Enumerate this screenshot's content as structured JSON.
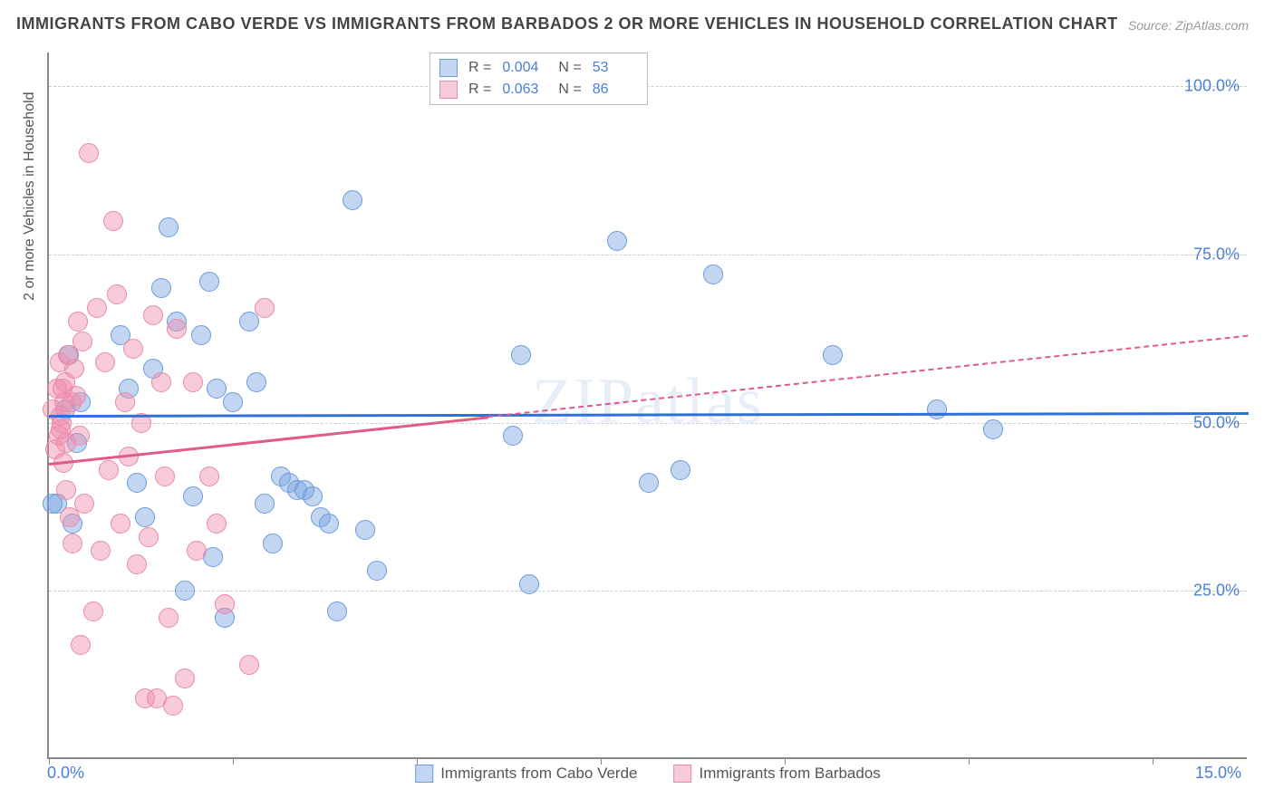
{
  "title": "IMMIGRANTS FROM CABO VERDE VS IMMIGRANTS FROM BARBADOS 2 OR MORE VEHICLES IN HOUSEHOLD CORRELATION CHART",
  "source": "Source: ZipAtlas.com",
  "watermark": "ZIPatlas",
  "ylabel": "2 or more Vehicles in Household",
  "chart": {
    "type": "scatter",
    "xlim": [
      0,
      15
    ],
    "ylim": [
      0,
      105
    ],
    "yticks": [
      {
        "v": 25,
        "label": "25.0%"
      },
      {
        "v": 50,
        "label": "50.0%"
      },
      {
        "v": 75,
        "label": "75.0%"
      },
      {
        "v": 100,
        "label": "100.0%"
      }
    ],
    "xtick_positions": [
      0,
      2.3,
      4.6,
      6.9,
      9.2,
      11.5,
      13.8
    ],
    "xtick_left": "0.0%",
    "xtick_right": "15.0%",
    "background": "#ffffff",
    "grid_color": "#cccccc",
    "axis_color": "#888888",
    "series": [
      {
        "name": "Immigrants from Cabo Verde",
        "fill": "rgba(120,165,225,0.45)",
        "stroke": "#6a9be0",
        "marker_r": 11,
        "R": "0.004",
        "N": "53",
        "trend": {
          "y0": 51.2,
          "y1": 51.6,
          "color": "#2f6fd8",
          "dash_after_x": 15
        },
        "points": [
          [
            0.1,
            38
          ],
          [
            0.2,
            52
          ],
          [
            0.25,
            60
          ],
          [
            0.3,
            35
          ],
          [
            0.35,
            47
          ],
          [
            0.4,
            53
          ],
          [
            0.9,
            63
          ],
          [
            1.0,
            55
          ],
          [
            1.1,
            41
          ],
          [
            1.2,
            36
          ],
          [
            1.3,
            58
          ],
          [
            1.4,
            70
          ],
          [
            1.5,
            79
          ],
          [
            1.6,
            65
          ],
          [
            1.7,
            25
          ],
          [
            1.8,
            39
          ],
          [
            1.9,
            63
          ],
          [
            2.0,
            71
          ],
          [
            2.05,
            30
          ],
          [
            2.1,
            55
          ],
          [
            2.2,
            21
          ],
          [
            2.3,
            53
          ],
          [
            2.5,
            65
          ],
          [
            2.6,
            56
          ],
          [
            2.7,
            38
          ],
          [
            2.8,
            32
          ],
          [
            2.9,
            42
          ],
          [
            3.0,
            41
          ],
          [
            3.1,
            40
          ],
          [
            3.2,
            40
          ],
          [
            3.3,
            39
          ],
          [
            3.4,
            36
          ],
          [
            3.5,
            35
          ],
          [
            3.6,
            22
          ],
          [
            3.8,
            83
          ],
          [
            3.95,
            34
          ],
          [
            4.1,
            28
          ],
          [
            5.8,
            48
          ],
          [
            5.9,
            60
          ],
          [
            6.0,
            26
          ],
          [
            7.1,
            77
          ],
          [
            7.5,
            41
          ],
          [
            7.9,
            43
          ],
          [
            8.3,
            72
          ],
          [
            9.8,
            60
          ],
          [
            11.1,
            52
          ],
          [
            11.8,
            49
          ],
          [
            0.05,
            38
          ]
        ]
      },
      {
        "name": "Immigrants from Barbados",
        "fill": "rgba(240,140,170,0.45)",
        "stroke": "#e88aa8",
        "marker_r": 11,
        "R": "0.063",
        "N": "86",
        "trend": {
          "y0": 44,
          "y1": 63,
          "color": "#e05a8a",
          "dash_after_x": 5.5
        },
        "points": [
          [
            0.05,
            52
          ],
          [
            0.08,
            46
          ],
          [
            0.1,
            55
          ],
          [
            0.12,
            48
          ],
          [
            0.14,
            59
          ],
          [
            0.16,
            50
          ],
          [
            0.18,
            44
          ],
          [
            0.2,
            56
          ],
          [
            0.22,
            40
          ],
          [
            0.24,
            60
          ],
          [
            0.26,
            36
          ],
          [
            0.28,
            53
          ],
          [
            0.3,
            32
          ],
          [
            0.32,
            58
          ],
          [
            0.34,
            54
          ],
          [
            0.36,
            65
          ],
          [
            0.38,
            48
          ],
          [
            0.4,
            17
          ],
          [
            0.42,
            62
          ],
          [
            0.44,
            38
          ],
          [
            0.5,
            90
          ],
          [
            0.55,
            22
          ],
          [
            0.6,
            67
          ],
          [
            0.65,
            31
          ],
          [
            0.7,
            59
          ],
          [
            0.75,
            43
          ],
          [
            0.8,
            80
          ],
          [
            0.85,
            69
          ],
          [
            0.9,
            35
          ],
          [
            0.95,
            53
          ],
          [
            1.0,
            45
          ],
          [
            1.05,
            61
          ],
          [
            1.1,
            29
          ],
          [
            1.15,
            50
          ],
          [
            1.2,
            9
          ],
          [
            1.25,
            33
          ],
          [
            1.3,
            66
          ],
          [
            1.35,
            9
          ],
          [
            1.4,
            56
          ],
          [
            1.45,
            42
          ],
          [
            1.5,
            21
          ],
          [
            1.55,
            8
          ],
          [
            1.6,
            64
          ],
          [
            1.7,
            12
          ],
          [
            1.8,
            56
          ],
          [
            1.85,
            31
          ],
          [
            2.0,
            42
          ],
          [
            2.1,
            35
          ],
          [
            2.2,
            23
          ],
          [
            2.5,
            14
          ],
          [
            2.7,
            67
          ],
          [
            0.15,
            51
          ],
          [
            0.15,
            49
          ],
          [
            0.17,
            55
          ],
          [
            0.19,
            53
          ],
          [
            0.21,
            47
          ]
        ]
      }
    ]
  },
  "legend_bottom": [
    {
      "label": "Immigrants from Cabo Verde",
      "fill": "rgba(120,165,225,0.45)",
      "stroke": "#6a9be0"
    },
    {
      "label": "Immigrants from Barbados",
      "fill": "rgba(240,140,170,0.45)",
      "stroke": "#e88aa8"
    }
  ]
}
